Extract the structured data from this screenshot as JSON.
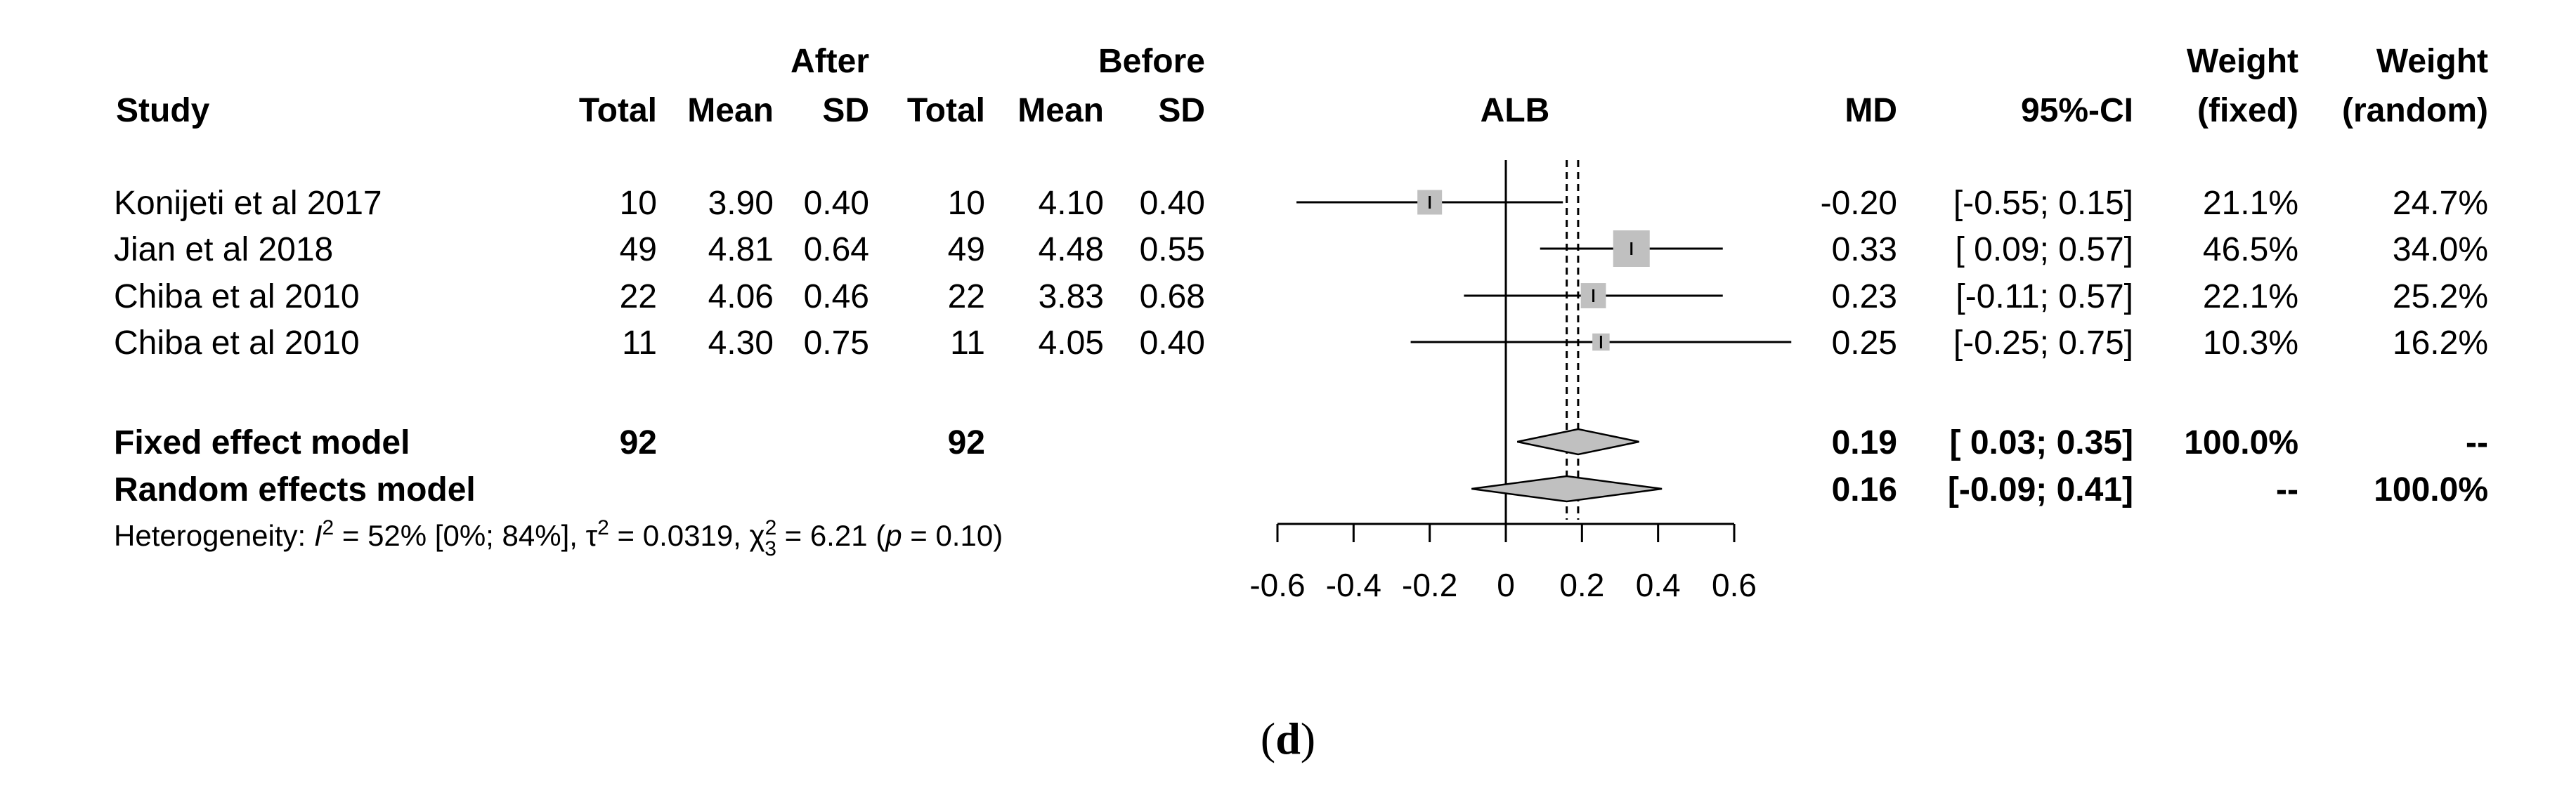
{
  "panel_label": {
    "open": "(",
    "letter": "d",
    "close": ")"
  },
  "chart_data": {
    "type": "forest",
    "title": "ALB",
    "xlim": [
      -0.6,
      0.6
    ],
    "xticks": [
      -0.6,
      -0.4,
      -0.2,
      0,
      0.2,
      0.4,
      0.6
    ],
    "xtick_labels": [
      "-0.6",
      "-0.4",
      "-0.2",
      "0",
      "0.2",
      "0.4",
      "0.6"
    ],
    "headers": {
      "group1": "After",
      "group2": "Before",
      "study": "Study",
      "total": "Total",
      "mean": "Mean",
      "sd": "SD",
      "md": "MD",
      "ci": "95%-CI",
      "weight": "Weight",
      "fixed": "(fixed)",
      "random": "(random)"
    },
    "studies": [
      {
        "name": "Konijeti et al 2017",
        "total_a": "10",
        "mean_a": "3.90",
        "sd_a": "0.40",
        "total_b": "10",
        "mean_b": "4.10",
        "sd_b": "0.40",
        "md": -0.2,
        "lower": -0.55,
        "upper": 0.15,
        "md_text": "-0.20",
        "ci_text": "[-0.55; 0.15]",
        "w_fixed": "21.1%",
        "w_random": "24.7%",
        "w": 21.1
      },
      {
        "name": "Jian et al 2018",
        "total_a": "49",
        "mean_a": "4.81",
        "sd_a": "0.64",
        "total_b": "49",
        "mean_b": "4.48",
        "sd_b": "0.55",
        "md": 0.33,
        "lower": 0.09,
        "upper": 0.57,
        "md_text": "0.33",
        "ci_text": "[ 0.09; 0.57]",
        "w_fixed": "46.5%",
        "w_random": "34.0%",
        "w": 46.5
      },
      {
        "name": "Chiba et al 2010",
        "total_a": "22",
        "mean_a": "4.06",
        "sd_a": "0.46",
        "total_b": "22",
        "mean_b": "3.83",
        "sd_b": "0.68",
        "md": 0.23,
        "lower": -0.11,
        "upper": 0.57,
        "md_text": "0.23",
        "ci_text": "[-0.11; 0.57]",
        "w_fixed": "22.1%",
        "w_random": "25.2%",
        "w": 22.1
      },
      {
        "name": "Chiba et al 2010",
        "total_a": "11",
        "mean_a": "4.30",
        "sd_a": "0.75",
        "total_b": "11",
        "mean_b": "4.05",
        "sd_b": "0.40",
        "md": 0.25,
        "lower": -0.25,
        "upper": 0.75,
        "md_text": "0.25",
        "ci_text": "[-0.25; 0.75]",
        "w_fixed": "10.3%",
        "w_random": "16.2%",
        "w": 10.3
      }
    ],
    "fixed": {
      "label": "Fixed effect model",
      "total_a": "92",
      "total_b": "92",
      "md": 0.19,
      "lower": 0.03,
      "upper": 0.35,
      "md_text": "0.19",
      "ci_text": "[ 0.03; 0.35]",
      "w_fixed": "100.0%",
      "w_random": "--"
    },
    "random": {
      "label": "Random effects model",
      "md": 0.16,
      "lower": -0.09,
      "upper": 0.41,
      "md_text": "0.16",
      "ci_text": "[-0.09; 0.41]",
      "w_fixed": "--",
      "w_random": "100.0%"
    },
    "heterogeneity": {
      "prefix": "Heterogeneity: ",
      "i2_symbol": "I",
      "sup2": "2",
      "i2_text": " = 52% [0%; 84%], ",
      "tau_symbol": "τ",
      "tau_text": " = 0.0319, ",
      "chi_symbol": "χ",
      "chi_sub": "3",
      "chi_text": " = 6.21 (",
      "p_symbol": "p",
      "p_text": " = 0.10)"
    }
  }
}
